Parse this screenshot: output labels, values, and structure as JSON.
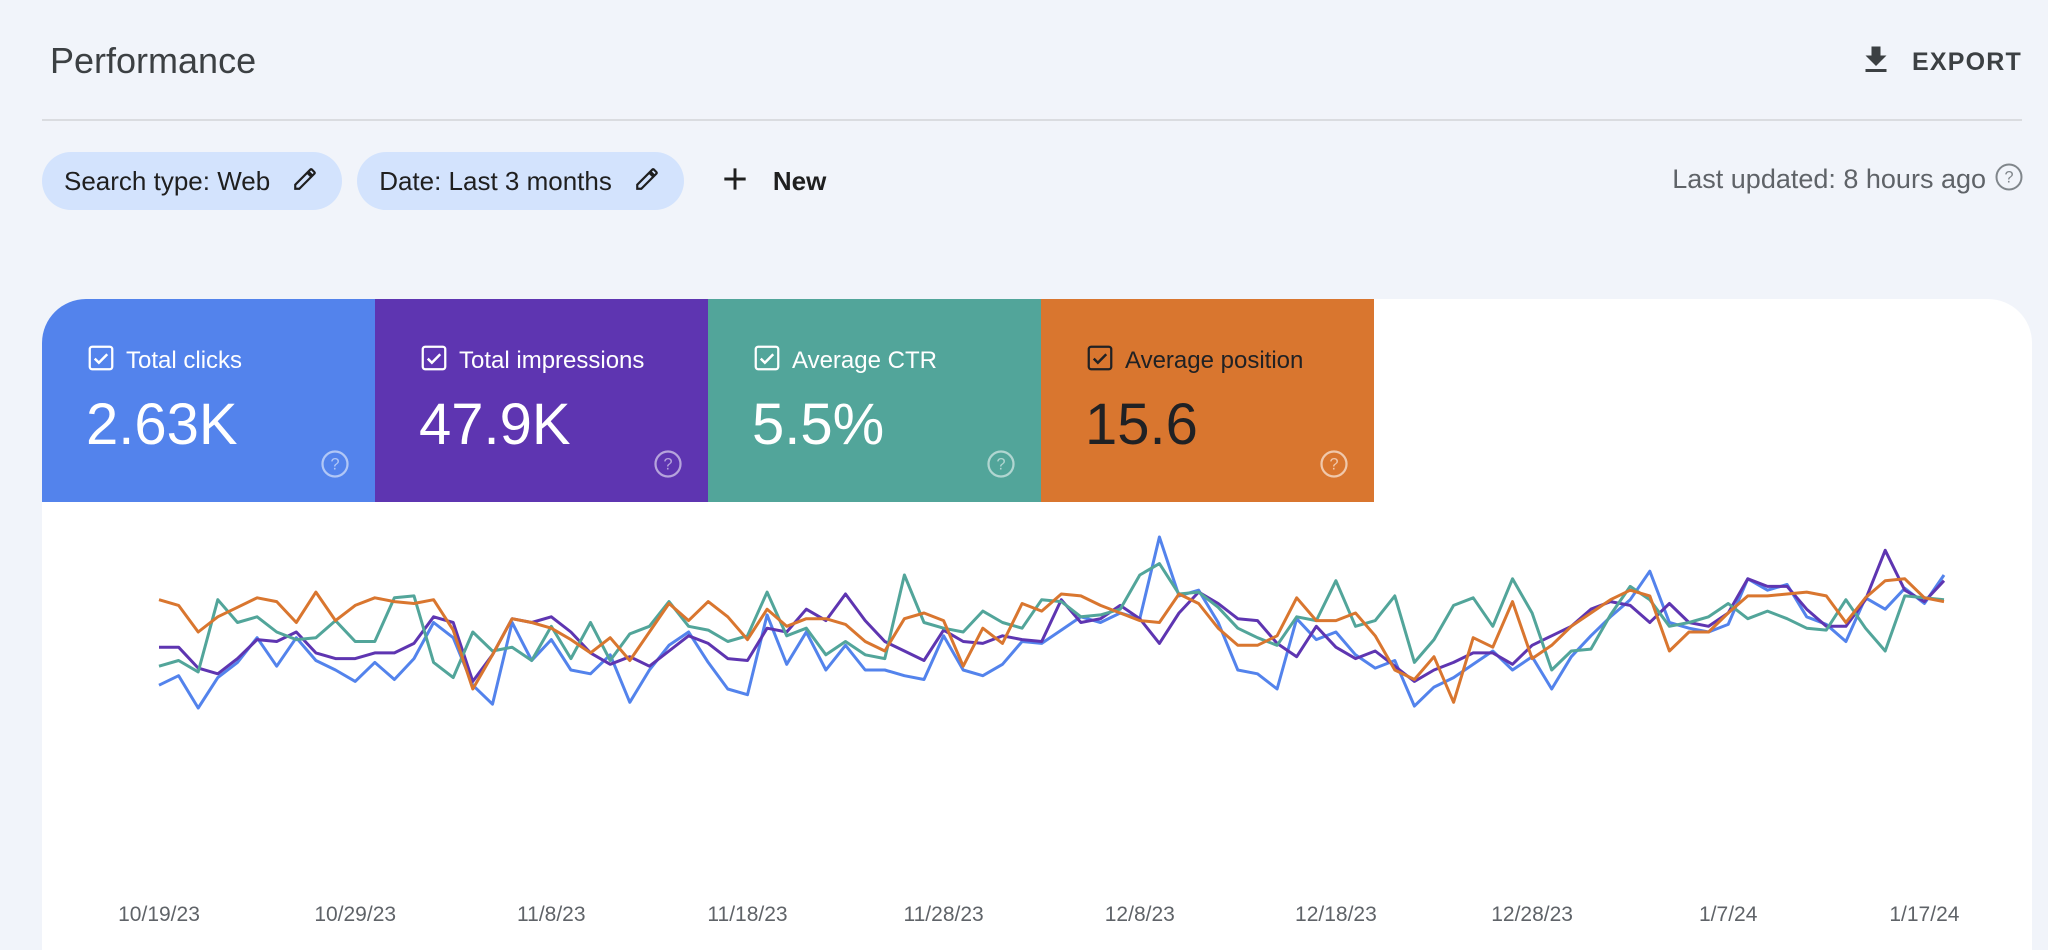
{
  "header": {
    "title": "Performance",
    "export_label": "EXPORT"
  },
  "filters": {
    "chips": [
      {
        "label": "Search type: Web"
      },
      {
        "label": "Date: Last 3 months"
      }
    ],
    "new_label": "New"
  },
  "last_updated": "Last updated: 8 hours ago",
  "metrics": [
    {
      "label": "Total clicks",
      "value": "2.63K",
      "color": "#5383ec",
      "text_color": "#ffffff",
      "checked": true
    },
    {
      "label": "Total impressions",
      "value": "47.9K",
      "color": "#5e35b1",
      "text_color": "#ffffff",
      "checked": true
    },
    {
      "label": "Average CTR",
      "value": "5.5%",
      "color": "#52a59a",
      "text_color": "#ffffff",
      "checked": true
    },
    {
      "label": "Average position",
      "value": "15.6",
      "color": "#d9762f",
      "text_color": "#202124",
      "checked": true
    }
  ],
  "chart_data": {
    "type": "line",
    "x_tick_labels": [
      "10/19/23",
      "10/29/23",
      "11/8/23",
      "11/18/23",
      "11/28/23",
      "12/8/23",
      "12/18/23",
      "12/28/23",
      "1/7/24",
      "1/17/24"
    ],
    "days": 92,
    "y_axis_visible": false,
    "normalized_y": true,
    "series": [
      {
        "name": "Total clicks",
        "color": "#5383ec",
        "values": [
          0.22,
          0.27,
          0.1,
          0.26,
          0.34,
          0.47,
          0.32,
          0.47,
          0.35,
          0.3,
          0.24,
          0.34,
          0.25,
          0.36,
          0.55,
          0.47,
          0.22,
          0.12,
          0.55,
          0.35,
          0.46,
          0.3,
          0.28,
          0.38,
          0.13,
          0.3,
          0.43,
          0.5,
          0.34,
          0.2,
          0.17,
          0.59,
          0.33,
          0.5,
          0.3,
          0.43,
          0.3,
          0.3,
          0.27,
          0.25,
          0.48,
          0.3,
          0.27,
          0.33,
          0.45,
          0.44,
          0.51,
          0.58,
          0.55,
          0.6,
          0.57,
          1.0,
          0.69,
          0.72,
          0.55,
          0.3,
          0.28,
          0.2,
          0.57,
          0.46,
          0.5,
          0.38,
          0.31,
          0.35,
          0.11,
          0.21,
          0.26,
          0.33,
          0.4,
          0.3,
          0.37,
          0.2,
          0.37,
          0.48,
          0.58,
          0.67,
          0.82,
          0.55,
          0.52,
          0.5,
          0.54,
          0.78,
          0.72,
          0.75,
          0.58,
          0.54,
          0.45,
          0.68,
          0.62,
          0.73,
          0.65,
          0.8
        ]
      },
      {
        "name": "Total impressions",
        "color": "#5e35b1",
        "values": [
          0.42,
          0.42,
          0.31,
          0.28,
          0.36,
          0.46,
          0.45,
          0.5,
          0.39,
          0.36,
          0.36,
          0.39,
          0.39,
          0.44,
          0.58,
          0.55,
          0.24,
          0.38,
          0.57,
          0.55,
          0.58,
          0.5,
          0.39,
          0.33,
          0.37,
          0.32,
          0.4,
          0.48,
          0.44,
          0.36,
          0.35,
          0.52,
          0.5,
          0.62,
          0.56,
          0.7,
          0.56,
          0.45,
          0.4,
          0.35,
          0.51,
          0.45,
          0.44,
          0.48,
          0.46,
          0.45,
          0.67,
          0.55,
          0.57,
          0.64,
          0.57,
          0.44,
          0.6,
          0.71,
          0.65,
          0.57,
          0.56,
          0.44,
          0.37,
          0.53,
          0.42,
          0.36,
          0.4,
          0.32,
          0.24,
          0.3,
          0.34,
          0.39,
          0.39,
          0.33,
          0.43,
          0.48,
          0.53,
          0.62,
          0.66,
          0.64,
          0.55,
          0.65,
          0.55,
          0.53,
          0.6,
          0.78,
          0.74,
          0.74,
          0.62,
          0.53,
          0.53,
          0.67,
          0.93,
          0.72,
          0.66,
          0.77
        ]
      },
      {
        "name": "Average CTR",
        "color": "#52a59a",
        "values": [
          0.32,
          0.35,
          0.29,
          0.67,
          0.55,
          0.58,
          0.5,
          0.46,
          0.47,
          0.56,
          0.45,
          0.45,
          0.68,
          0.69,
          0.34,
          0.26,
          0.5,
          0.4,
          0.42,
          0.35,
          0.53,
          0.36,
          0.55,
          0.35,
          0.49,
          0.53,
          0.66,
          0.53,
          0.51,
          0.45,
          0.48,
          0.71,
          0.48,
          0.52,
          0.38,
          0.45,
          0.38,
          0.36,
          0.8,
          0.55,
          0.52,
          0.5,
          0.61,
          0.55,
          0.52,
          0.67,
          0.66,
          0.58,
          0.59,
          0.62,
          0.8,
          0.86,
          0.7,
          0.71,
          0.63,
          0.52,
          0.47,
          0.43,
          0.58,
          0.56,
          0.77,
          0.53,
          0.56,
          0.69,
          0.34,
          0.46,
          0.64,
          0.68,
          0.53,
          0.78,
          0.6,
          0.3,
          0.4,
          0.41,
          0.59,
          0.74,
          0.67,
          0.53,
          0.55,
          0.58,
          0.65,
          0.57,
          0.61,
          0.57,
          0.52,
          0.51,
          0.67,
          0.52,
          0.4,
          0.69,
          0.68,
          0.67
        ]
      },
      {
        "name": "Average position",
        "color": "#d9762f",
        "values": [
          0.67,
          0.64,
          0.5,
          0.58,
          0.63,
          0.68,
          0.66,
          0.55,
          0.71,
          0.56,
          0.64,
          0.68,
          0.66,
          0.65,
          0.67,
          0.51,
          0.2,
          0.38,
          0.57,
          0.55,
          0.52,
          0.46,
          0.39,
          0.47,
          0.35,
          0.5,
          0.65,
          0.56,
          0.66,
          0.58,
          0.46,
          0.62,
          0.53,
          0.57,
          0.57,
          0.54,
          0.45,
          0.4,
          0.57,
          0.6,
          0.56,
          0.32,
          0.52,
          0.44,
          0.65,
          0.61,
          0.7,
          0.69,
          0.64,
          0.6,
          0.56,
          0.55,
          0.7,
          0.65,
          0.52,
          0.43,
          0.43,
          0.48,
          0.68,
          0.56,
          0.56,
          0.6,
          0.48,
          0.3,
          0.25,
          0.37,
          0.13,
          0.47,
          0.42,
          0.66,
          0.36,
          0.43,
          0.53,
          0.6,
          0.67,
          0.72,
          0.69,
          0.4,
          0.5,
          0.5,
          0.6,
          0.69,
          0.69,
          0.7,
          0.71,
          0.69,
          0.55,
          0.68,
          0.77,
          0.78,
          0.68,
          0.66
        ]
      }
    ]
  }
}
